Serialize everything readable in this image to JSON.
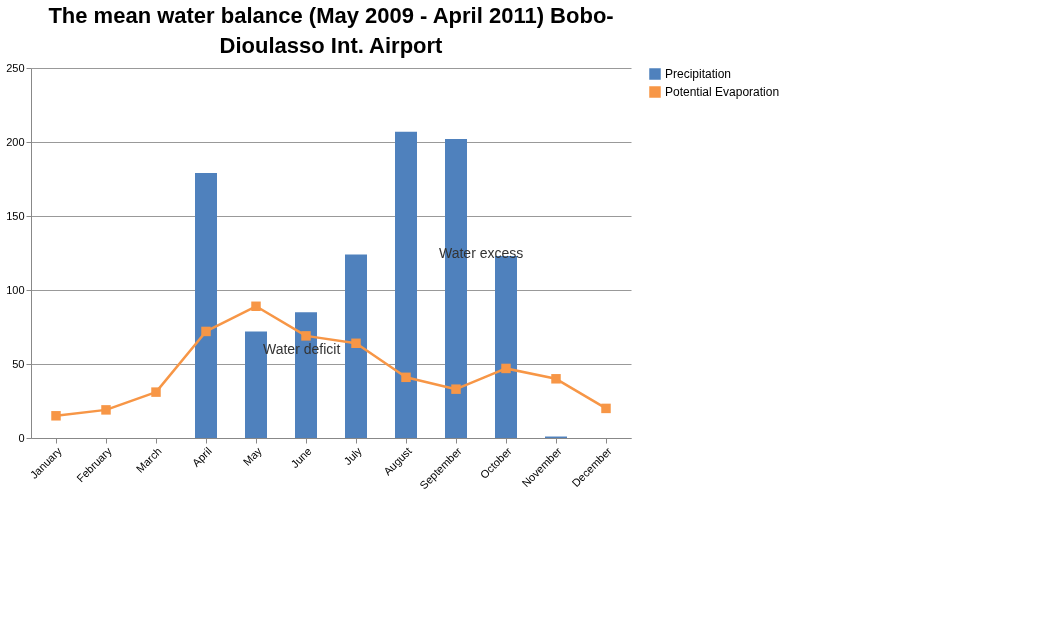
{
  "chart_data": {
    "type": "bar",
    "title": "The mean water balance  (May 2009 - April 2011) Bobo-Dioulasso Int. Airport",
    "categories": [
      "January",
      "February",
      "March",
      "April",
      "May",
      "June",
      "July",
      "August",
      "September",
      "October",
      "November",
      "December"
    ],
    "series": [
      {
        "name": "Precipitation",
        "color": "#4f81bd",
        "values": [
          0,
          0,
          0,
          179,
          72,
          85,
          124,
          207,
          202,
          123,
          1,
          0
        ]
      },
      {
        "name": "Potential Evaporation",
        "type": "line",
        "color": "#f79646",
        "values": [
          15,
          19,
          31,
          72,
          89,
          69,
          64,
          41,
          33,
          47,
          40,
          20
        ]
      }
    ],
    "annotations": [
      "Water deficit",
      "Water excess"
    ],
    "ylim": [
      0,
      250
    ],
    "yticks": [
      0,
      50,
      100,
      150,
      200,
      250
    ],
    "grid": "y",
    "legend": "right",
    "marker": "square"
  }
}
